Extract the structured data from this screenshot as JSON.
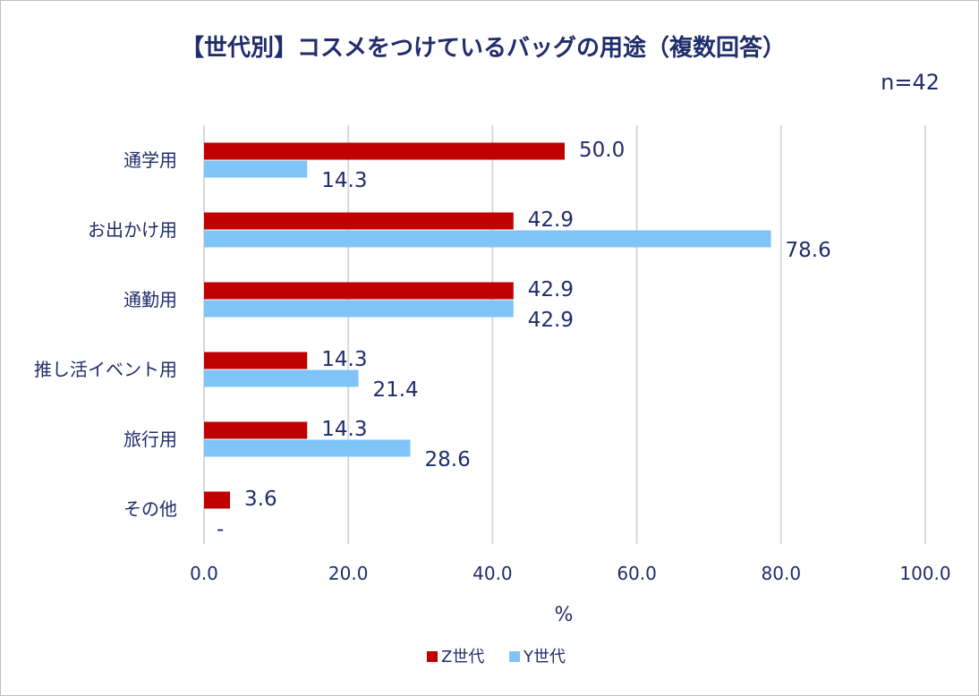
{
  "chart_data": {
    "type": "bar",
    "orientation": "horizontal",
    "title": "【世代別】コスメをつけているバッグの用途（複数回答）",
    "sample_size": "n=42",
    "categories": [
      "通学用",
      "お出かけ用",
      "通勤用",
      "推し活イベント用",
      "旅行用",
      "その他"
    ],
    "series": [
      {
        "name": "Z世代",
        "color": "#c00000",
        "values": [
          50.0,
          42.9,
          42.9,
          14.3,
          14.3,
          3.6
        ],
        "labels": [
          "50.0",
          "42.9",
          "42.9",
          "14.3",
          "14.3",
          "3.6"
        ]
      },
      {
        "name": "Y世代",
        "color": "#7fc4f8",
        "values": [
          14.3,
          78.6,
          42.9,
          21.4,
          28.6,
          null
        ],
        "labels": [
          "14.3",
          "78.6",
          "42.9",
          "21.4",
          "28.6",
          "-"
        ]
      }
    ],
    "xlabel": "%",
    "xlim": [
      0,
      100
    ],
    "xticks": [
      "0.0",
      "20.0",
      "40.0",
      "60.0",
      "80.0",
      "100.0"
    ],
    "grid": true,
    "legend": "bottom"
  }
}
